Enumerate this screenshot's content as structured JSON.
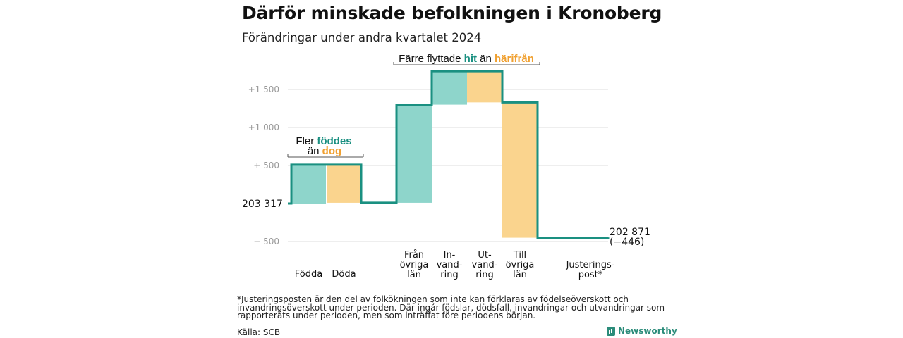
{
  "title": "Därför minskade befolkningen i Kronoberg",
  "subtitle": "Förändringar under andra kvartalet 2024",
  "footnote": "*Justeringsposten är den del av folkökningen som inte kan förklaras av födelseöverskott och invandringsöverskott under perioden. Där ingår födslar, dödsfall, invandringar och utvandringar som rapporterats under perioden, men som inträffat före periodens början.",
  "source": "Källa: SCB",
  "logo_text": "Newsworthy",
  "colors": {
    "in": "#8ed5cb",
    "out": "#fad48e",
    "line": "#1a9081",
    "in_text": "#1a9081",
    "out_text": "#f0a030",
    "grid": "#dddddd",
    "tick": "#999999"
  },
  "chart_data": {
    "type": "waterfall",
    "start_value": 203317,
    "start_label": "203  317",
    "end_value": 202871,
    "end_label": "202 871",
    "end_change_label": "(−446)",
    "y_change_range": [
      -500,
      1500
    ],
    "y_ticks": [
      -500,
      500,
      1000,
      1500
    ],
    "y_tick_labels": [
      "−  500",
      "+  500",
      "+1  000",
      "+1  500"
    ],
    "grid": true,
    "steps": [
      {
        "label": [
          "Födda"
        ],
        "value": 510,
        "kind": "in"
      },
      {
        "label": [
          "Döda"
        ],
        "value": -500,
        "kind": "out"
      },
      {
        "label": [
          "Från",
          "övriga",
          "län"
        ],
        "value": 1290,
        "kind": "in"
      },
      {
        "label": [
          "In-",
          "vand-",
          "ring"
        ],
        "value": 440,
        "kind": "in"
      },
      {
        "label": [
          "Ut-",
          "vand-",
          "ring"
        ],
        "value": -410,
        "kind": "out"
      },
      {
        "label": [
          "Till",
          "övriga",
          "län"
        ],
        "value": -1780,
        "kind": "out"
      },
      {
        "label": [
          "Justerings-",
          "post*"
        ],
        "value": 4,
        "kind": "adjust"
      }
    ],
    "annotations": [
      {
        "parts": [
          {
            "text": "Fler ",
            "color": "dark"
          },
          {
            "text": "föddes",
            "color": "in"
          }
        ],
        "parts2": [
          {
            "text": "än ",
            "color": "dark"
          },
          {
            "text": "dog",
            "color": "out"
          }
        ]
      },
      {
        "parts": [
          {
            "text": "Färre flyttade ",
            "color": "dark"
          },
          {
            "text": "hit",
            "color": "in"
          },
          {
            "text": " än ",
            "color": "dark"
          },
          {
            "text": "härifrån",
            "color": "out"
          }
        ]
      }
    ]
  }
}
